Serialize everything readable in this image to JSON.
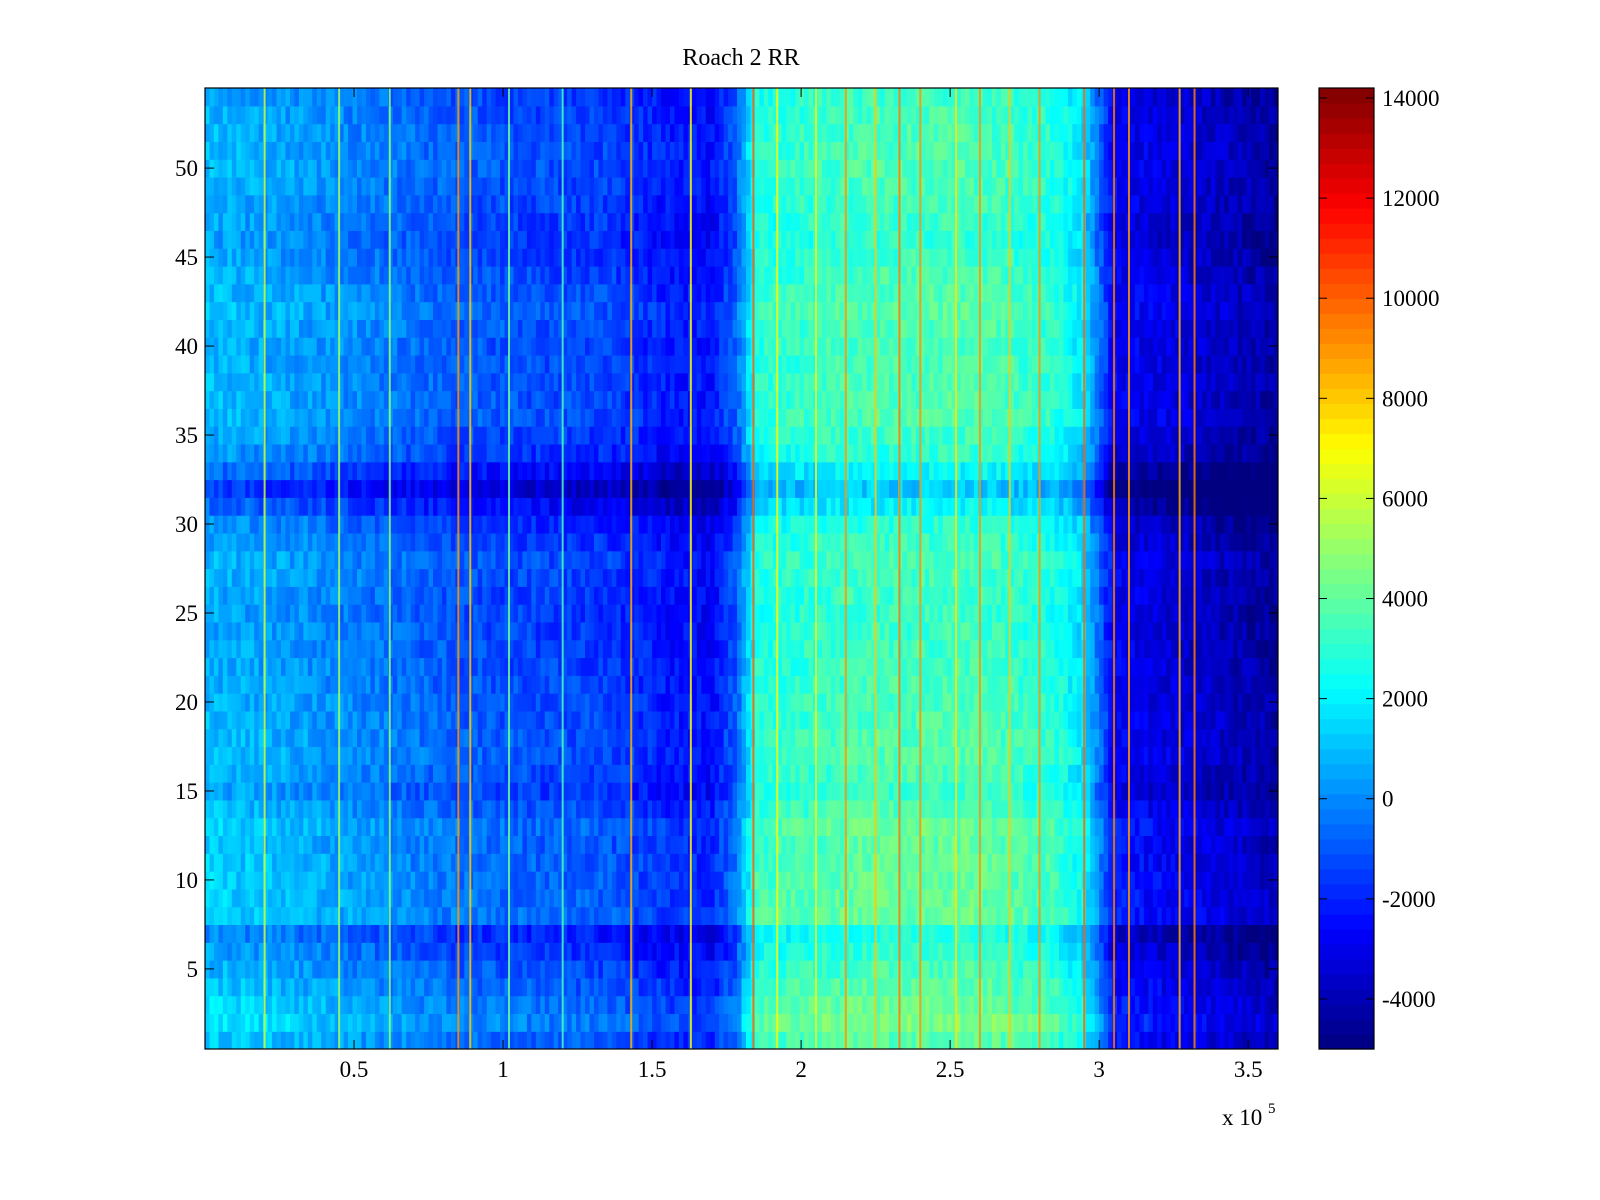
{
  "chart_data": {
    "type": "heatmap",
    "title": "Roach 2 RR",
    "xlabel": "",
    "ylabel": "",
    "colormap": "jet",
    "x_tick_labels": [
      "0.5",
      "1",
      "1.5",
      "2",
      "2.5",
      "3",
      "3.5"
    ],
    "x_ticks": [
      0.5,
      1,
      1.5,
      2,
      2.5,
      3,
      3.5
    ],
    "x_multiplier": {
      "prefix": "x 10",
      "exponent": "5"
    },
    "xlim": [
      0,
      3.6
    ],
    "y_tick_labels": [
      "5",
      "10",
      "15",
      "20",
      "25",
      "30",
      "35",
      "40",
      "45",
      "50"
    ],
    "y_ticks": [
      5,
      10,
      15,
      20,
      25,
      30,
      35,
      40,
      45,
      50
    ],
    "ylim": [
      0.5,
      54.5
    ],
    "colorbar": {
      "range": [
        -5000,
        14200
      ],
      "tick_labels": [
        "-4000",
        "-2000",
        "0",
        "2000",
        "4000",
        "6000",
        "8000",
        "10000",
        "12000",
        "14000"
      ],
      "ticks": [
        -4000,
        -2000,
        0,
        2000,
        4000,
        6000,
        8000,
        10000,
        12000,
        14000
      ]
    },
    "column_profile": {
      "x": [
        0,
        0.3,
        0.6,
        0.85,
        1.1,
        1.35,
        1.55,
        1.7,
        1.78,
        1.85,
        2.2,
        2.6,
        2.85,
        2.95,
        3.05,
        3.3,
        3.5,
        3.6
      ],
      "value": [
        600,
        100,
        -600,
        -1200,
        -1500,
        -1700,
        -2400,
        -2700,
        -1200,
        2600,
        3200,
        3300,
        2600,
        1400,
        -3000,
        -3700,
        -4300,
        -4700
      ]
    },
    "row_profile": {
      "y": [
        1,
        2,
        5,
        7,
        8,
        12,
        13,
        15,
        17,
        20,
        25,
        28,
        30,
        32,
        34,
        36,
        40,
        42,
        46,
        50,
        52,
        54
      ],
      "offset": [
        700,
        1300,
        300,
        -500,
        900,
        700,
        900,
        0,
        500,
        300,
        0,
        300,
        -300,
        -2000,
        -200,
        400,
        300,
        600,
        -100,
        400,
        300,
        100
      ]
    },
    "streaks": [
      {
        "x": 0.2,
        "value": 6000
      },
      {
        "x": 0.45,
        "value": 5200
      },
      {
        "x": 0.62,
        "value": 4800
      },
      {
        "x": 0.85,
        "value": 9000
      },
      {
        "x": 0.89,
        "value": 8000
      },
      {
        "x": 1.02,
        "value": 4200
      },
      {
        "x": 1.2,
        "value": 3500
      },
      {
        "x": 1.43,
        "value": 8500
      },
      {
        "x": 1.63,
        "value": 7000
      },
      {
        "x": 1.84,
        "value": 10000
      },
      {
        "x": 1.92,
        "value": 7000
      },
      {
        "x": 2.05,
        "value": 6500
      },
      {
        "x": 2.15,
        "value": 9000
      },
      {
        "x": 2.25,
        "value": 8000
      },
      {
        "x": 2.33,
        "value": 9500
      },
      {
        "x": 2.4,
        "value": 9000
      },
      {
        "x": 2.52,
        "value": 7500
      },
      {
        "x": 2.6,
        "value": 9000
      },
      {
        "x": 2.7,
        "value": 8000
      },
      {
        "x": 2.8,
        "value": 9000
      },
      {
        "x": 2.95,
        "value": 10000
      },
      {
        "x": 3.05,
        "value": 9500
      },
      {
        "x": 3.1,
        "value": 9000
      },
      {
        "x": 3.27,
        "value": 8500
      },
      {
        "x": 3.32,
        "value": 9500
      }
    ],
    "grid": false,
    "legend": "colorbar-right"
  }
}
